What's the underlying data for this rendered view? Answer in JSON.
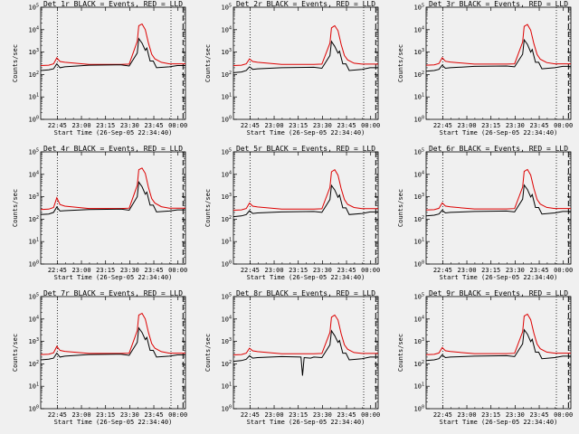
{
  "figure": {
    "background": "#f0f0f0",
    "ylabel": "Counts/sec",
    "xlabel": "Start Time (26-Sep-05 22:34:40)",
    "x_tick_labels": [
      "22:45",
      "23:00",
      "23:15",
      "23:30",
      "23:45",
      "00:00"
    ],
    "y_tick_labels": [
      "10^0",
      "10^1",
      "10^2",
      "10^3",
      "10^4",
      "10^5"
    ],
    "vertical_markers": [
      {
        "label": "22:45",
        "minutes_from_start": 10.33,
        "style": "dotted"
      },
      {
        "label": "23:56",
        "minutes_from_start": 81.0,
        "style": "dotted"
      },
      {
        "label": "00:03",
        "minutes_from_start": 88.5,
        "style": "dashed"
      }
    ]
  },
  "chart_data": [
    {
      "type": "line",
      "title": "Det 1r BLACK = Events, RED = LLD",
      "xlabel": "Start Time (26-Sep-05 22:34:40)",
      "ylabel": "Counts/sec",
      "x_unit": "minutes from 22:34:40",
      "xlim": [
        0,
        90
      ],
      "ylim": [
        1,
        100000
      ],
      "yscale": "log",
      "series": [
        {
          "name": "Events",
          "color": "#000000",
          "x": [
            0,
            5,
            8,
            10,
            12,
            15,
            30,
            50,
            55,
            60,
            61,
            63,
            65,
            66,
            68,
            70,
            72,
            80,
            85,
            90
          ],
          "y": [
            150,
            160,
            180,
            300,
            200,
            220,
            260,
            270,
            240,
            900,
            4000,
            2500,
            1200,
            1500,
            400,
            400,
            200,
            220,
            250,
            250
          ]
        },
        {
          "name": "LLD",
          "color": "#dd0000",
          "x": [
            0,
            5,
            8,
            10,
            12,
            15,
            30,
            50,
            55,
            60,
            61,
            63,
            65,
            67,
            69,
            71,
            75,
            80,
            85,
            90
          ],
          "y": [
            250,
            260,
            300,
            550,
            380,
            350,
            280,
            280,
            290,
            3000,
            15000,
            18000,
            10000,
            2500,
            800,
            500,
            350,
            300,
            300,
            300
          ]
        }
      ]
    },
    {
      "type": "line",
      "title": "Det 2r BLACK = Events, RED = LLD",
      "xlabel": "Start Time (26-Sep-05 22:34:40)",
      "ylabel": "Counts/sec",
      "x_unit": "minutes from 22:34:40",
      "xlim": [
        0,
        90
      ],
      "ylim": [
        1,
        100000
      ],
      "yscale": "log",
      "series": [
        {
          "name": "Events",
          "color": "#000000",
          "x": [
            0,
            5,
            8,
            10,
            12,
            15,
            30,
            50,
            55,
            60,
            61,
            63,
            65,
            66,
            68,
            70,
            72,
            80,
            85,
            90
          ],
          "y": [
            120,
            130,
            150,
            220,
            170,
            180,
            200,
            210,
            190,
            700,
            3000,
            1800,
            900,
            1100,
            300,
            300,
            150,
            170,
            200,
            200
          ]
        },
        {
          "name": "LLD",
          "color": "#dd0000",
          "x": [
            0,
            5,
            8,
            10,
            12,
            15,
            30,
            50,
            55,
            60,
            61,
            63,
            65,
            67,
            69,
            71,
            75,
            80,
            85,
            90
          ],
          "y": [
            250,
            260,
            300,
            500,
            380,
            350,
            280,
            280,
            290,
            2500,
            12000,
            15000,
            9000,
            2200,
            700,
            450,
            320,
            290,
            290,
            290
          ]
        }
      ]
    },
    {
      "type": "line",
      "title": "Det 3r BLACK = Events, RED = LLD",
      "xlabel": "Start Time (26-Sep-05 22:34:40)",
      "ylabel": "Counts/sec",
      "x_unit": "minutes from 22:34:40",
      "xlim": [
        0,
        90
      ],
      "ylim": [
        1,
        100000
      ],
      "yscale": "log",
      "series": [
        {
          "name": "Events",
          "color": "#000000",
          "x": [
            0,
            5,
            8,
            10,
            12,
            15,
            30,
            50,
            55,
            60,
            61,
            63,
            65,
            66,
            68,
            70,
            72,
            80,
            85,
            90
          ],
          "y": [
            140,
            150,
            170,
            260,
            190,
            200,
            230,
            240,
            220,
            800,
            3500,
            2200,
            1000,
            1300,
            350,
            350,
            180,
            200,
            230,
            230
          ]
        },
        {
          "name": "LLD",
          "color": "#dd0000",
          "x": [
            0,
            5,
            8,
            10,
            12,
            15,
            30,
            50,
            55,
            60,
            61,
            63,
            65,
            67,
            69,
            71,
            75,
            80,
            85,
            90
          ],
          "y": [
            260,
            270,
            310,
            560,
            390,
            360,
            290,
            290,
            300,
            2800,
            14000,
            17000,
            9500,
            2400,
            780,
            480,
            340,
            300,
            300,
            300
          ]
        }
      ]
    },
    {
      "type": "line",
      "title": "Det 4r BLACK = Events, RED = LLD",
      "xlabel": "Start Time (26-Sep-05 22:34:40)",
      "ylabel": "Counts/sec",
      "x_unit": "minutes from 22:34:40",
      "xlim": [
        0,
        90
      ],
      "ylim": [
        1,
        100000
      ],
      "yscale": "log",
      "series": [
        {
          "name": "Events",
          "color": "#000000",
          "x": [
            0,
            5,
            8,
            10,
            12,
            15,
            30,
            50,
            55,
            60,
            61,
            63,
            65,
            66,
            68,
            70,
            72,
            80,
            85,
            90
          ],
          "y": [
            160,
            170,
            200,
            350,
            230,
            240,
            270,
            280,
            250,
            1000,
            4500,
            2800,
            1300,
            1600,
            420,
            420,
            210,
            230,
            260,
            260
          ]
        },
        {
          "name": "LLD",
          "color": "#dd0000",
          "x": [
            0,
            5,
            8,
            10,
            12,
            15,
            30,
            50,
            55,
            60,
            61,
            63,
            65,
            67,
            69,
            71,
            75,
            80,
            85,
            90
          ],
          "y": [
            270,
            280,
            330,
            900,
            450,
            380,
            300,
            300,
            310,
            3200,
            16000,
            19000,
            11000,
            2600,
            820,
            520,
            360,
            310,
            310,
            310
          ]
        }
      ]
    },
    {
      "type": "line",
      "title": "Det 5r BLACK = Events, RED = LLD",
      "xlabel": "Start Time (26-Sep-05 22:34:40)",
      "ylabel": "Counts/sec",
      "x_unit": "minutes from 22:34:40",
      "xlim": [
        0,
        90
      ],
      "ylim": [
        1,
        100000
      ],
      "yscale": "log",
      "series": [
        {
          "name": "Events",
          "color": "#000000",
          "x": [
            0,
            5,
            8,
            10,
            12,
            15,
            30,
            50,
            55,
            60,
            61,
            63,
            65,
            66,
            68,
            70,
            72,
            80,
            85,
            90
          ],
          "y": [
            130,
            140,
            160,
            240,
            180,
            190,
            210,
            220,
            200,
            750,
            3200,
            2000,
            950,
            1200,
            320,
            320,
            160,
            180,
            210,
            210
          ]
        },
        {
          "name": "LLD",
          "color": "#dd0000",
          "x": [
            0,
            5,
            8,
            10,
            12,
            15,
            30,
            50,
            55,
            60,
            61,
            63,
            65,
            67,
            69,
            71,
            75,
            80,
            85,
            90
          ],
          "y": [
            250,
            260,
            300,
            520,
            380,
            350,
            280,
            280,
            290,
            2600,
            13000,
            16000,
            9200,
            2300,
            750,
            460,
            330,
            295,
            295,
            295
          ]
        }
      ]
    },
    {
      "type": "line",
      "title": "Det 6r BLACK = Events, RED = LLD",
      "xlabel": "Start Time (26-Sep-05 22:34:40)",
      "ylabel": "Counts/sec",
      "x_unit": "minutes from 22:34:40",
      "xlim": [
        0,
        90
      ],
      "ylim": [
        1,
        100000
      ],
      "yscale": "log",
      "series": [
        {
          "name": "Events",
          "color": "#000000",
          "x": [
            0,
            5,
            8,
            10,
            12,
            15,
            30,
            50,
            55,
            60,
            61,
            63,
            65,
            66,
            68,
            70,
            72,
            80,
            85,
            90
          ],
          "y": [
            140,
            150,
            170,
            250,
            190,
            200,
            220,
            230,
            210,
            780,
            3300,
            2100,
            980,
            1250,
            330,
            330,
            170,
            190,
            220,
            220
          ]
        },
        {
          "name": "LLD",
          "color": "#dd0000",
          "x": [
            0,
            5,
            8,
            10,
            12,
            15,
            30,
            50,
            55,
            60,
            61,
            63,
            65,
            67,
            69,
            71,
            75,
            80,
            85,
            90
          ],
          "y": [
            255,
            265,
            305,
            530,
            385,
            355,
            285,
            285,
            295,
            2700,
            13500,
            16500,
            9300,
            2350,
            760,
            470,
            335,
            298,
            298,
            298
          ]
        }
      ]
    },
    {
      "type": "line",
      "title": "Det 7r BLACK = Events, RED = LLD",
      "xlabel": "Start Time (26-Sep-05 22:34:40)",
      "ylabel": "Counts/sec",
      "x_unit": "minutes from 22:34:40",
      "xlim": [
        0,
        90
      ],
      "ylim": [
        1,
        100000
      ],
      "yscale": "log",
      "series": [
        {
          "name": "Events",
          "color": "#000000",
          "x": [
            0,
            5,
            8,
            10,
            12,
            15,
            30,
            50,
            55,
            60,
            61,
            63,
            65,
            66,
            68,
            70,
            72,
            80,
            85,
            90
          ],
          "y": [
            150,
            160,
            180,
            300,
            200,
            220,
            260,
            270,
            240,
            900,
            4000,
            2500,
            1200,
            1500,
            400,
            400,
            200,
            220,
            250,
            250
          ]
        },
        {
          "name": "LLD",
          "color": "#dd0000",
          "x": [
            0,
            5,
            8,
            10,
            12,
            15,
            30,
            50,
            55,
            60,
            61,
            63,
            65,
            67,
            69,
            71,
            75,
            80,
            85,
            90
          ],
          "y": [
            260,
            270,
            310,
            600,
            400,
            360,
            290,
            290,
            300,
            3000,
            15000,
            18000,
            10000,
            2500,
            800,
            500,
            350,
            300,
            300,
            300
          ]
        }
      ]
    },
    {
      "type": "line",
      "title": "Det 8r BLACK = Events, RED = LLD",
      "xlabel": "Start Time (26-Sep-05 22:34:40)",
      "ylabel": "Counts/sec",
      "x_unit": "minutes from 22:34:40",
      "xlim": [
        0,
        90
      ],
      "ylim": [
        1,
        100000
      ],
      "yscale": "log",
      "series": [
        {
          "name": "Events",
          "color": "#000000",
          "x": [
            0,
            5,
            8,
            10,
            12,
            15,
            30,
            42,
            43,
            44,
            48,
            50,
            55,
            60,
            61,
            63,
            65,
            66,
            68,
            70,
            72,
            80,
            85,
            90
          ],
          "y": [
            130,
            140,
            160,
            230,
            180,
            190,
            210,
            200,
            30,
            190,
            180,
            200,
            190,
            700,
            3000,
            1800,
            900,
            1100,
            300,
            300,
            150,
            170,
            200,
            200
          ]
        },
        {
          "name": "LLD",
          "color": "#dd0000",
          "x": [
            0,
            5,
            8,
            10,
            12,
            15,
            30,
            50,
            55,
            60,
            61,
            63,
            65,
            67,
            69,
            71,
            75,
            80,
            85,
            90
          ],
          "y": [
            250,
            260,
            300,
            500,
            380,
            350,
            280,
            280,
            290,
            2500,
            12000,
            15000,
            9000,
            2200,
            700,
            450,
            320,
            290,
            290,
            290
          ]
        }
      ]
    },
    {
      "type": "line",
      "title": "Det 9r BLACK = Events, RED = LLD",
      "xlabel": "Start Time (26-Sep-05 22:34:40)",
      "ylabel": "Counts/sec",
      "x_unit": "minutes from 22:34:40",
      "xlim": [
        0,
        90
      ],
      "ylim": [
        1,
        100000
      ],
      "yscale": "log",
      "series": [
        {
          "name": "Events",
          "color": "#000000",
          "x": [
            0,
            5,
            8,
            10,
            12,
            15,
            30,
            50,
            55,
            60,
            61,
            63,
            65,
            66,
            68,
            70,
            72,
            80,
            85,
            90
          ],
          "y": [
            140,
            150,
            170,
            250,
            190,
            200,
            220,
            230,
            210,
            780,
            3300,
            2100,
            980,
            1250,
            330,
            330,
            170,
            190,
            220,
            220
          ]
        },
        {
          "name": "LLD",
          "color": "#dd0000",
          "x": [
            0,
            5,
            8,
            10,
            12,
            15,
            30,
            50,
            55,
            60,
            61,
            63,
            65,
            67,
            69,
            71,
            75,
            80,
            85,
            90
          ],
          "y": [
            255,
            265,
            305,
            530,
            385,
            355,
            285,
            285,
            295,
            2700,
            13500,
            16500,
            9300,
            2350,
            760,
            470,
            335,
            298,
            298,
            298
          ]
        }
      ]
    }
  ]
}
